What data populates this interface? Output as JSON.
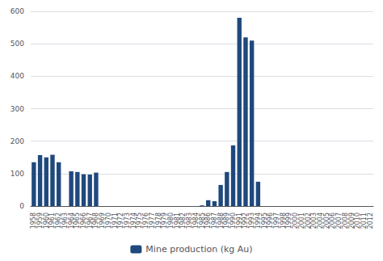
{
  "chart_data": {
    "type": "bar",
    "categories": [
      "1958",
      "1959",
      "1960",
      "1961",
      "1962",
      "1963",
      "1964",
      "1965",
      "1966",
      "1967",
      "1968",
      "1969",
      "1970",
      "1971",
      "1972",
      "1973",
      "1974",
      "1975",
      "1976",
      "1977",
      "1978",
      "1979",
      "1980",
      "1981",
      "1982",
      "1983",
      "1984",
      "1985",
      "1986",
      "1987",
      "1988",
      "1989",
      "1990",
      "1991",
      "1992",
      "1993",
      "1994",
      "1995",
      "1996",
      "1997",
      "1998",
      "1999",
      "2000",
      "2001",
      "2002",
      "2003",
      "2004",
      "2005",
      "2006",
      "2007",
      "2008",
      "2009",
      "2010",
      "2011",
      "2012"
    ],
    "series": [
      {
        "name": "Mine production (kg Au)",
        "color": "#1f497d",
        "values": [
          135,
          157,
          150,
          158,
          135,
          0,
          107,
          105,
          98,
          97,
          103,
          0,
          0,
          0,
          0,
          0,
          0,
          0,
          0,
          0,
          0,
          0,
          0,
          0,
          0,
          0,
          0,
          2,
          18,
          15,
          65,
          105,
          187,
          580,
          520,
          510,
          75,
          0,
          0,
          0,
          0,
          0,
          0,
          0,
          0,
          0,
          0,
          0,
          0,
          0,
          0,
          0,
          0,
          0,
          0
        ]
      }
    ],
    "ylim": [
      0,
      600
    ],
    "yticks": [
      0,
      100,
      200,
      300,
      400,
      500,
      600
    ],
    "grid": true,
    "legend": "bottom"
  }
}
